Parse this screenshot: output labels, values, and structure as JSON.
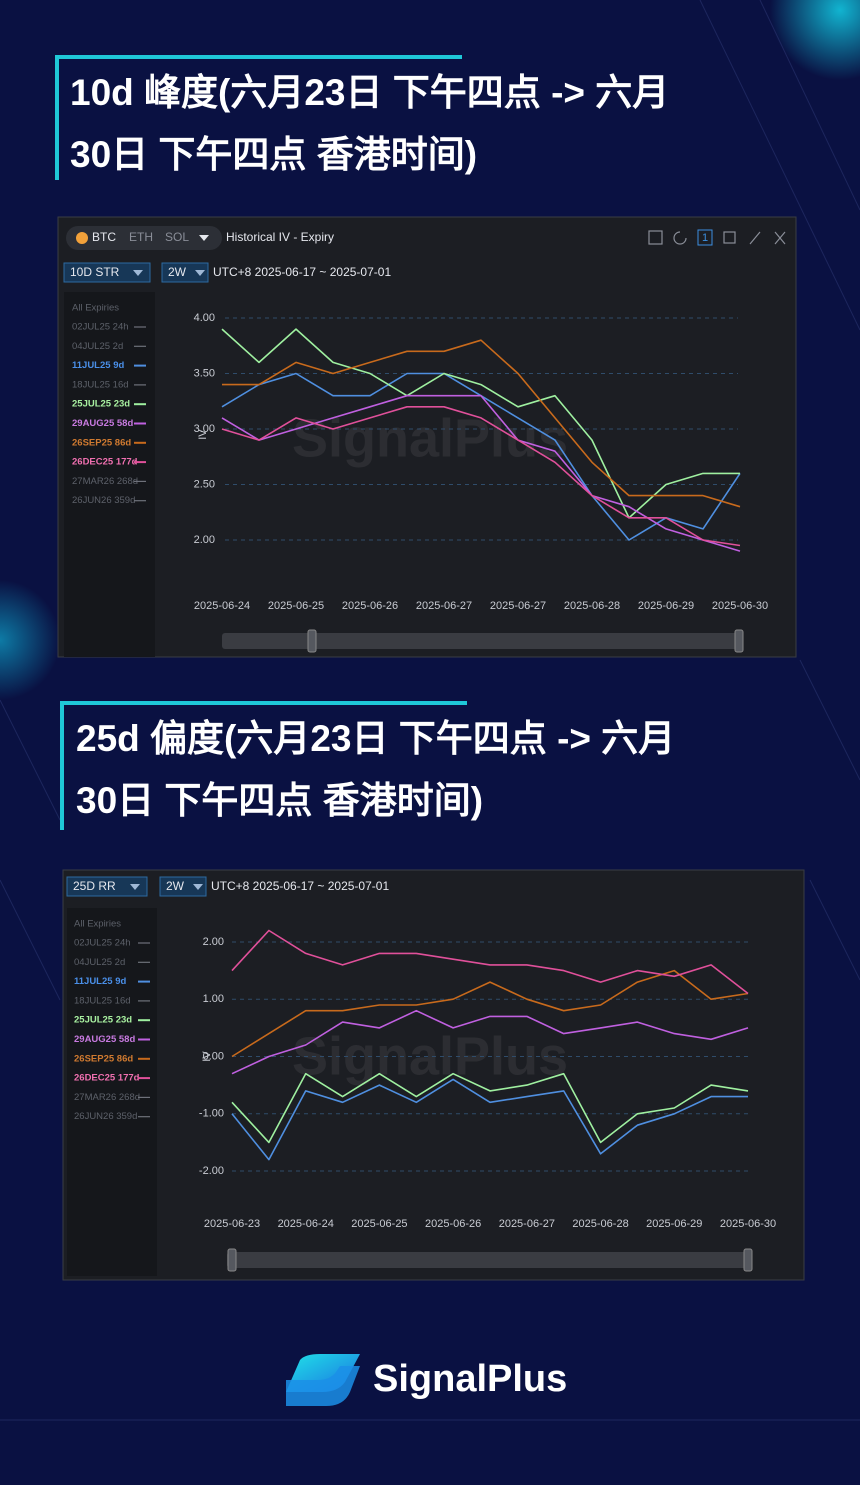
{
  "header1": {
    "title_lines": [
      "10d 峰度(六月23日 下午四点 -> 六月",
      "30日 下午四点 香港时间)"
    ]
  },
  "panel1": {
    "coins": [
      "BTC",
      "ETH",
      "SOL"
    ],
    "view": "Historical IV - Expiry",
    "window_badge": 1,
    "metric": "10D STR",
    "range": "2W",
    "period": "UTC+8 2025-06-17 ~ 2025-07-01",
    "legend_title": "All Expiries",
    "watermark": "SignalPlus"
  },
  "header2": {
    "title_lines": [
      "25d 偏度(六月23日 下午四点 -> 六月",
      "30日 下午四点 香港时间)"
    ]
  },
  "panel2": {
    "metric": "25D RR",
    "range": "2W",
    "period": "UTC+8 2025-06-17 ~ 2025-07-01",
    "legend_title": "All Expiries",
    "watermark": "SignalPlus"
  },
  "brand": "SignalPlus",
  "chart_data": [
    {
      "type": "line",
      "y_label": "IV",
      "grid": true,
      "categories": [
        "2025-06-24",
        null,
        "2025-06-25",
        null,
        "2025-06-26",
        null,
        "2025-06-27",
        null,
        "2025-06-27",
        null,
        "2025-06-28",
        null,
        "2025-06-29",
        null,
        "2025-06-30"
      ],
      "ylim": [
        1.6,
        4.3
      ],
      "yticks": [
        {
          "value": 2,
          "label": "2.00"
        },
        {
          "value": 2.5,
          "label": "2.50"
        },
        {
          "value": 3,
          "label": "3.00"
        },
        {
          "value": 3.5,
          "label": "3.50"
        },
        {
          "value": 4,
          "label": "4.00"
        }
      ],
      "series": [
        {
          "name": "02JUL25 24h",
          "color": "#6e717a",
          "values": [
            null,
            null,
            null,
            null,
            null,
            null,
            null,
            null,
            null,
            null,
            null,
            null,
            null,
            null,
            null
          ]
        },
        {
          "name": "04JUL25 2d",
          "color": "#6e717a",
          "values": [
            null,
            null,
            null,
            null,
            null,
            null,
            null,
            null,
            null,
            null,
            null,
            null,
            null,
            null,
            null
          ]
        },
        {
          "name": "11JUL25 9d",
          "color": "#4f8fe0",
          "values": [
            3.2,
            3.4,
            3.5,
            3.3,
            3.3,
            3.5,
            3.5,
            3.3,
            3.1,
            2.9,
            2.4,
            2.0,
            2.2,
            2.1,
            2.6
          ]
        },
        {
          "name": "18JUL25 16d",
          "color": "#6e717a",
          "values": [
            null,
            null,
            null,
            null,
            null,
            null,
            null,
            null,
            null,
            null,
            null,
            null,
            null,
            null,
            null
          ]
        },
        {
          "name": "25JUL25 23d",
          "color": "#9ff0a0",
          "values": [
            3.9,
            3.6,
            3.9,
            3.6,
            3.5,
            3.3,
            3.5,
            3.4,
            3.2,
            3.3,
            2.9,
            2.2,
            2.5,
            2.6,
            2.6
          ]
        },
        {
          "name": "29AUG25 58d",
          "color": "#c060e0",
          "values": [
            3.1,
            2.9,
            3.0,
            3.1,
            3.2,
            3.3,
            3.3,
            3.3,
            2.9,
            2.8,
            2.4,
            2.3,
            2.1,
            2.0,
            1.9
          ]
        },
        {
          "name": "26SEP25 86d",
          "color": "#c86a1c",
          "values": [
            3.4,
            3.4,
            3.6,
            3.5,
            3.6,
            3.7,
            3.7,
            3.8,
            3.5,
            3.1,
            2.7,
            2.4,
            2.4,
            2.4,
            2.3
          ]
        },
        {
          "name": "26DEC25 177d",
          "color": "#e0509a",
          "values": [
            3.0,
            2.9,
            3.1,
            3.0,
            3.1,
            3.2,
            3.2,
            3.1,
            2.9,
            2.7,
            2.4,
            2.2,
            2.2,
            2.0,
            1.95
          ]
        },
        {
          "name": "27MAR26 268d",
          "color": "#6e717a",
          "values": [
            null,
            null,
            null,
            null,
            null,
            null,
            null,
            null,
            null,
            null,
            null,
            null,
            null,
            null,
            null
          ]
        },
        {
          "name": "26JUN26 359d",
          "color": "#6e717a",
          "values": [
            null,
            null,
            null,
            null,
            null,
            null,
            null,
            null,
            null,
            null,
            null,
            null,
            null,
            null,
            null
          ]
        }
      ]
    },
    {
      "type": "line",
      "y_label": "IV",
      "grid": true,
      "categories": [
        "2025-06-23",
        null,
        "2025-06-24",
        null,
        "2025-06-25",
        null,
        "2025-06-26",
        null,
        "2025-06-27",
        null,
        "2025-06-28",
        null,
        "2025-06-29",
        null,
        "2025-06-30"
      ],
      "ylim": [
        -2.7,
        2.7
      ],
      "yticks": [
        {
          "value": -2,
          "label": "-2.00"
        },
        {
          "value": -1,
          "label": "-1.00"
        },
        {
          "value": 0,
          "label": "0.00"
        },
        {
          "value": 1,
          "label": "1.00"
        },
        {
          "value": 2,
          "label": "2.00"
        }
      ],
      "series": [
        {
          "name": "02JUL25 24h",
          "color": "#6e717a",
          "values": [
            null,
            null,
            null,
            null,
            null,
            null,
            null,
            null,
            null,
            null,
            null,
            null,
            null,
            null,
            null
          ]
        },
        {
          "name": "04JUL25 2d",
          "color": "#6e717a",
          "values": [
            null,
            null,
            null,
            null,
            null,
            null,
            null,
            null,
            null,
            null,
            null,
            null,
            null,
            null,
            null
          ]
        },
        {
          "name": "11JUL25 9d",
          "color": "#4f8fe0",
          "values": [
            -1.0,
            -1.8,
            -0.6,
            -0.8,
            -0.5,
            -0.8,
            -0.4,
            -0.8,
            -0.7,
            -0.6,
            -1.7,
            -1.2,
            -1.0,
            -0.7,
            -0.7
          ]
        },
        {
          "name": "18JUL25 16d",
          "color": "#6e717a",
          "values": [
            null,
            null,
            null,
            null,
            null,
            null,
            null,
            null,
            null,
            null,
            null,
            null,
            null,
            null,
            null
          ]
        },
        {
          "name": "25JUL25 23d",
          "color": "#9ff0a0",
          "values": [
            -0.8,
            -1.5,
            -0.3,
            -0.7,
            -0.3,
            -0.7,
            -0.3,
            -0.6,
            -0.5,
            -0.3,
            -1.5,
            -1.0,
            -0.9,
            -0.5,
            -0.6
          ]
        },
        {
          "name": "29AUG25 58d",
          "color": "#c060e0",
          "values": [
            -0.3,
            0.0,
            0.2,
            0.6,
            0.5,
            0.8,
            0.5,
            0.7,
            0.7,
            0.4,
            0.5,
            0.6,
            0.4,
            0.3,
            0.5
          ]
        },
        {
          "name": "26SEP25 86d",
          "color": "#c86a1c",
          "values": [
            0.0,
            0.4,
            0.8,
            0.8,
            0.9,
            0.9,
            1.0,
            1.3,
            1.0,
            0.8,
            0.9,
            1.3,
            1.5,
            1.0,
            1.1
          ]
        },
        {
          "name": "26DEC25 177d",
          "color": "#e0509a",
          "values": [
            1.5,
            2.2,
            1.8,
            1.6,
            1.8,
            1.8,
            1.7,
            1.6,
            1.6,
            1.5,
            1.3,
            1.5,
            1.4,
            1.6,
            1.1
          ]
        },
        {
          "name": "27MAR26 268d",
          "color": "#6e717a",
          "values": [
            null,
            null,
            null,
            null,
            null,
            null,
            null,
            null,
            null,
            null,
            null,
            null,
            null,
            null,
            null
          ]
        },
        {
          "name": "26JUN26 359d",
          "color": "#6e717a",
          "values": [
            null,
            null,
            null,
            null,
            null,
            null,
            null,
            null,
            null,
            null,
            null,
            null,
            null,
            null,
            null
          ]
        }
      ]
    }
  ]
}
